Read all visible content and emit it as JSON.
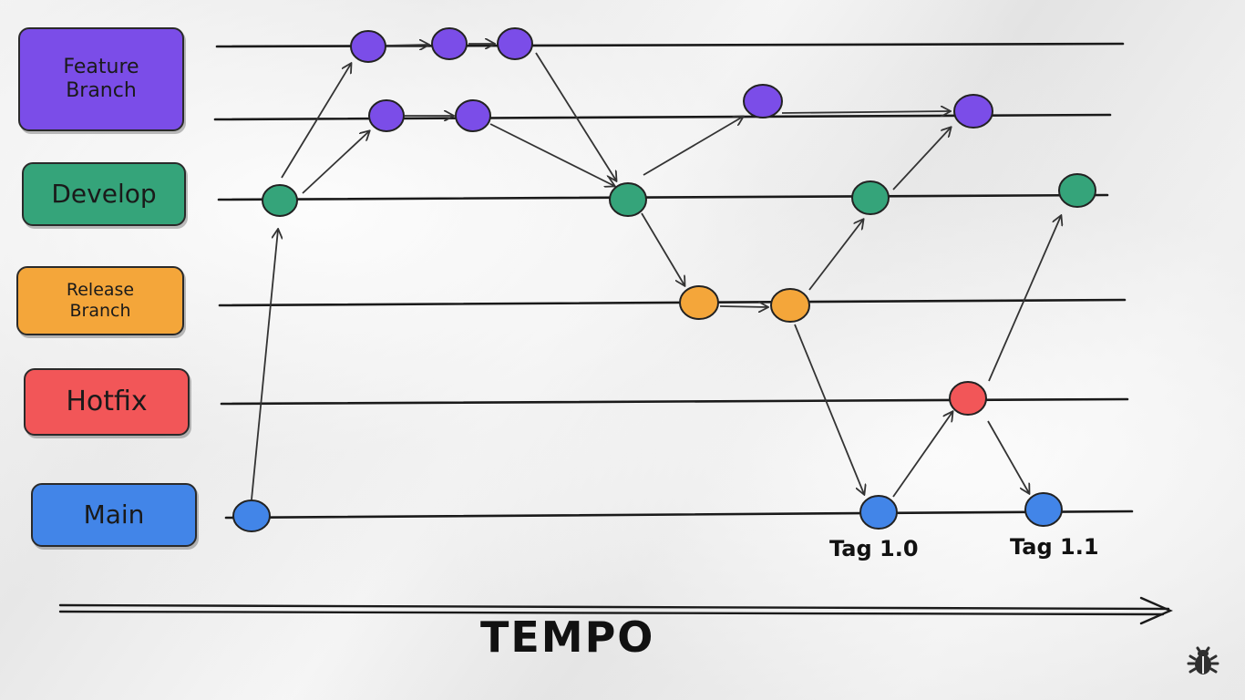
{
  "branches": {
    "feature": {
      "label": "Feature\nBranch",
      "color": "#7b4de8"
    },
    "develop": {
      "label": "Develop",
      "color": "#35a47a"
    },
    "release": {
      "label": "Release\nBranch",
      "color": "#f4a63a"
    },
    "hotfix": {
      "label": "Hotfix",
      "color": "#f25658"
    },
    "main": {
      "label": "Main",
      "color": "#4285e8"
    }
  },
  "tags": {
    "tag1": "Tag 1.0",
    "tag2": "Tag 1.1"
  },
  "axis": {
    "label": "TEMPO"
  },
  "icons": {
    "corner": "bug-icon"
  }
}
